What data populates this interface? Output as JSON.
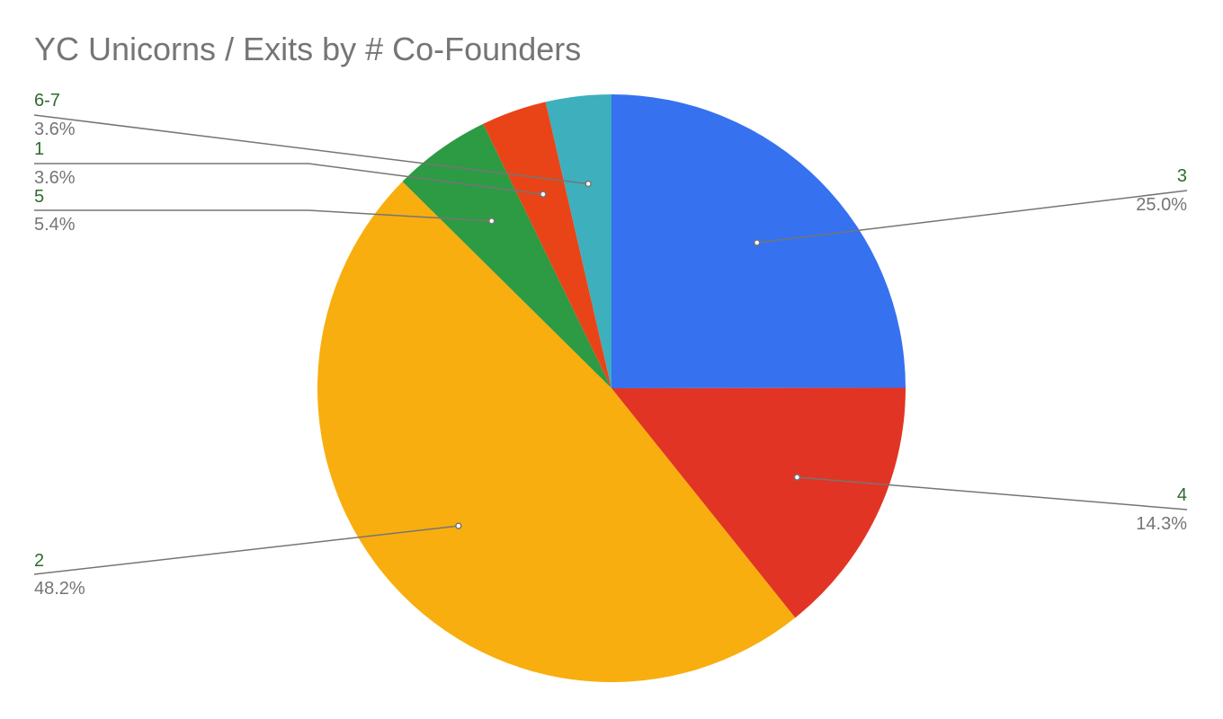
{
  "chart_data": {
    "type": "pie",
    "title": "YC Unicorns / Exits by # Co-Founders",
    "start_angle_deg": 0,
    "direction": "clockwise",
    "slices": [
      {
        "label": "3",
        "value": 25.0,
        "display": "25.0%",
        "color": "#3671f0"
      },
      {
        "label": "4",
        "value": 14.3,
        "display": "14.3%",
        "color": "#e23424"
      },
      {
        "label": "2",
        "value": 48.2,
        "display": "48.2%",
        "color": "#f8ae0f"
      },
      {
        "label": "5",
        "value": 5.4,
        "display": "5.4%",
        "color": "#2d9a44"
      },
      {
        "label": "1",
        "value": 3.6,
        "display": "3.6%",
        "color": "#e94418"
      },
      {
        "label": "6-7",
        "value": 3.6,
        "display": "3.6%",
        "color": "#3eafbc"
      }
    ],
    "label_color": "#2e6b2e",
    "percent_color": "#757575",
    "leader_color": "#757575"
  }
}
